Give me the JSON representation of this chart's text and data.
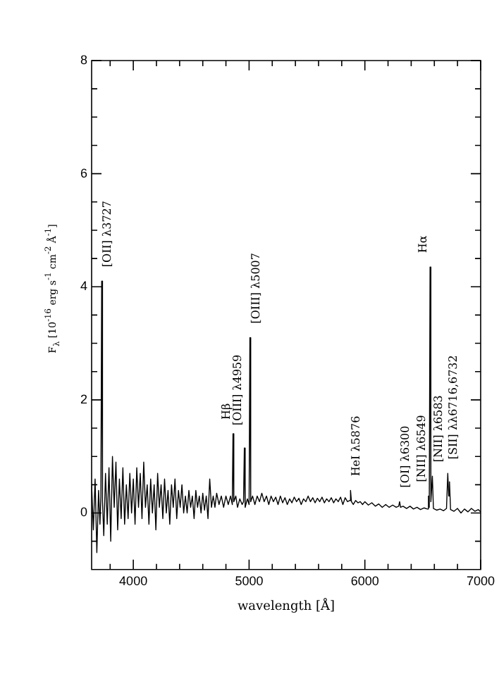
{
  "chart_data": {
    "type": "line",
    "xlabel": "wavelength [Å]",
    "ylabel": "F$_{λ}$ [10$^{-16}$ erg s$^{-1}$ cm$^{-2}$ Å$^{-1}$]",
    "xlim": [
      3640,
      7000
    ],
    "ylim": [
      -1,
      8
    ],
    "xticks": [
      {
        "value": 3800,
        "label": null
      },
      4000,
      {
        "value": 4200,
        "label": null
      },
      {
        "value": 4400,
        "label": null
      },
      {
        "value": 4600,
        "label": null
      },
      {
        "value": 4800,
        "label": null
      },
      5000,
      {
        "value": 5200,
        "label": null
      },
      {
        "value": 5400,
        "label": null
      },
      {
        "value": 5600,
        "label": null
      },
      {
        "value": 5800,
        "label": null
      },
      6000,
      {
        "value": 6200,
        "label": null
      },
      {
        "value": 6400,
        "label": null
      },
      {
        "value": 6600,
        "label": null
      },
      {
        "value": 6800,
        "label": null
      },
      7000
    ],
    "yticks": [
      {
        "value": -0.5,
        "label": null
      },
      0,
      {
        "value": 0.5,
        "label": null
      },
      {
        "value": 1,
        "label": null
      },
      {
        "value": 1.5,
        "label": null
      },
      2,
      {
        "value": 2.5,
        "label": null
      },
      {
        "value": 3,
        "label": null
      },
      {
        "value": 3.5,
        "label": null
      },
      4,
      {
        "value": 4.5,
        "label": null
      },
      {
        "value": 5,
        "label": null
      },
      {
        "value": 5.5,
        "label": null
      },
      6,
      {
        "value": 6.5,
        "label": null
      },
      {
        "value": 7,
        "label": null
      },
      {
        "value": 7.5,
        "label": null
      },
      8
    ],
    "grid": false,
    "legend": false,
    "series": [
      {
        "color": "#000000",
        "x": [
          3640,
          3655,
          3670,
          3685,
          3700,
          3712,
          3720,
          3727,
          3734,
          3745,
          3760,
          3775,
          3790,
          3805,
          3820,
          3835,
          3850,
          3865,
          3880,
          3895,
          3910,
          3925,
          3940,
          3955,
          3970,
          3985,
          4000,
          4015,
          4030,
          4045,
          4060,
          4075,
          4090,
          4105,
          4120,
          4135,
          4150,
          4165,
          4180,
          4195,
          4210,
          4225,
          4240,
          4255,
          4270,
          4285,
          4300,
          4315,
          4330,
          4345,
          4360,
          4375,
          4390,
          4405,
          4420,
          4435,
          4450,
          4465,
          4480,
          4495,
          4510,
          4525,
          4540,
          4555,
          4570,
          4585,
          4600,
          4615,
          4630,
          4645,
          4660,
          4675,
          4690,
          4705,
          4720,
          4740,
          4760,
          4780,
          4800,
          4820,
          4840,
          4855,
          4861,
          4868,
          4885,
          4900,
          4920,
          4940,
          4952,
          4959,
          4966,
          4985,
          5000,
          5007,
          5014,
          5030,
          5050,
          5070,
          5090,
          5110,
          5130,
          5150,
          5170,
          5190,
          5210,
          5230,
          5250,
          5270,
          5290,
          5310,
          5330,
          5350,
          5370,
          5390,
          5410,
          5430,
          5450,
          5470,
          5490,
          5510,
          5530,
          5550,
          5570,
          5590,
          5610,
          5630,
          5650,
          5670,
          5690,
          5710,
          5730,
          5750,
          5770,
          5790,
          5810,
          5830,
          5850,
          5868,
          5876,
          5884,
          5900,
          5920,
          5940,
          5960,
          5980,
          6000,
          6030,
          6060,
          6090,
          6120,
          6150,
          6180,
          6210,
          6240,
          6270,
          6292,
          6300,
          6308,
          6330,
          6360,
          6390,
          6420,
          6450,
          6480,
          6510,
          6540,
          6549,
          6556,
          6563,
          6570,
          6583,
          6592,
          6620,
          6650,
          6680,
          6705,
          6716,
          6724,
          6731,
          6740,
          6770,
          6800,
          6830,
          6860,
          6890,
          6920,
          6950,
          6980,
          7000
        ],
        "values": [
          0.5,
          -0.3,
          0.6,
          -0.7,
          0.4,
          -0.2,
          0.3,
          4.1,
          0.2,
          -0.4,
          0.7,
          -0.2,
          0.8,
          -0.5,
          1.0,
          0.1,
          0.9,
          -0.3,
          0.6,
          -0.1,
          0.8,
          -0.2,
          0.5,
          -0.1,
          0.7,
          0.0,
          0.6,
          -0.2,
          0.8,
          0.1,
          0.7,
          -0.1,
          0.9,
          0.1,
          0.5,
          -0.2,
          0.6,
          0.0,
          0.5,
          -0.3,
          0.7,
          0.1,
          0.5,
          -0.1,
          0.6,
          0.0,
          0.4,
          -0.2,
          0.5,
          0.1,
          0.6,
          -0.1,
          0.4,
          0.1,
          0.5,
          0.0,
          0.3,
          0.0,
          0.4,
          0.1,
          0.3,
          -0.1,
          0.4,
          0.1,
          0.3,
          0.0,
          0.35,
          0.05,
          0.3,
          -0.1,
          0.6,
          0.1,
          0.3,
          0.1,
          0.35,
          0.15,
          0.3,
          0.1,
          0.3,
          0.15,
          0.3,
          0.15,
          1.4,
          0.2,
          0.3,
          0.1,
          0.25,
          0.15,
          0.2,
          1.15,
          0.1,
          0.25,
          0.15,
          3.1,
          0.2,
          0.3,
          0.15,
          0.3,
          0.2,
          0.35,
          0.2,
          0.3,
          0.15,
          0.3,
          0.2,
          0.28,
          0.15,
          0.3,
          0.18,
          0.27,
          0.15,
          0.25,
          0.18,
          0.28,
          0.2,
          0.26,
          0.15,
          0.25,
          0.2,
          0.3,
          0.2,
          0.27,
          0.18,
          0.26,
          0.2,
          0.28,
          0.18,
          0.25,
          0.2,
          0.27,
          0.18,
          0.25,
          0.2,
          0.28,
          0.15,
          0.27,
          0.2,
          0.22,
          0.4,
          0.2,
          0.15,
          0.22,
          0.18,
          0.2,
          0.15,
          0.2,
          0.14,
          0.18,
          0.12,
          0.16,
          0.1,
          0.15,
          0.1,
          0.14,
          0.1,
          0.12,
          0.2,
          0.1,
          0.12,
          0.08,
          0.12,
          0.07,
          0.1,
          0.06,
          0.09,
          0.07,
          0.3,
          0.1,
          4.35,
          0.2,
          0.65,
          0.08,
          0.05,
          0.07,
          0.04,
          0.08,
          0.7,
          0.3,
          0.55,
          0.06,
          0.03,
          0.08,
          0.0,
          0.07,
          0.02,
          0.08,
          0.03,
          0.06,
          0.02
        ]
      }
    ],
    "annotations": [
      {
        "text": "[OII] λ3727",
        "x": 3727,
        "y": 4.1
      },
      {
        "text": "Hβ",
        "x": 4861,
        "y": 1.4
      },
      {
        "text": "[OIII] λ4959",
        "x": 4959,
        "y": 1.15
      },
      {
        "text": "[OIII] λ5007",
        "x": 5007,
        "y": 3.1
      },
      {
        "text": "HeI λ5876",
        "x": 5876,
        "y": 0.4
      },
      {
        "text": "[OI] λ6300",
        "x": 6300,
        "y": 0.2
      },
      {
        "text": "[NII] λ6549",
        "x": 6549,
        "y": 0.3
      },
      {
        "text": "Hα",
        "x": 6563,
        "y": 4.35
      },
      {
        "text": "[NII] λ6583",
        "x": 6583,
        "y": 0.65
      },
      {
        "text": "[SII] λλ6716,6732",
        "x": 6716,
        "y": 0.7
      }
    ]
  }
}
